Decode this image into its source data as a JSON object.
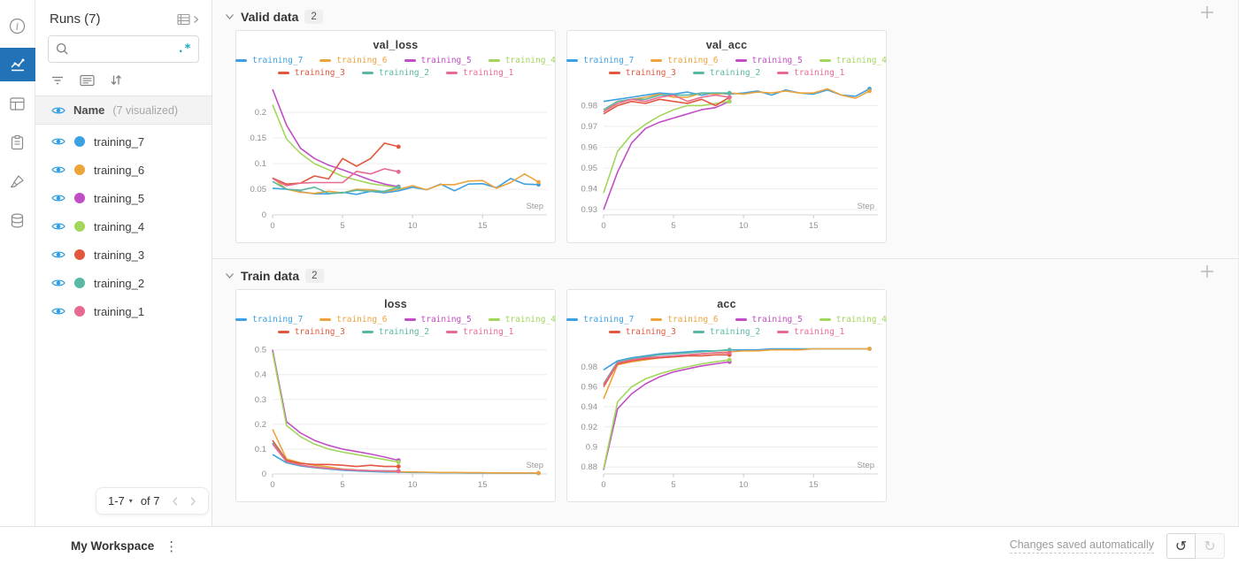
{
  "rail": {
    "items": [
      {
        "icon": "info-icon",
        "active": false
      },
      {
        "icon": "line-chart-icon",
        "active": true
      },
      {
        "icon": "table-panel-icon",
        "active": false
      },
      {
        "icon": "clipboard-icon",
        "active": false
      },
      {
        "icon": "brush-icon",
        "active": false
      },
      {
        "icon": "database-icon",
        "active": false
      }
    ]
  },
  "runs_panel": {
    "title": "Runs (7)",
    "search": {
      "value": "",
      "placeholder": "",
      "regex_icon": ".*"
    },
    "header": {
      "name_label": "Name",
      "visualized_label": "(7 visualized)"
    },
    "runs": [
      {
        "name": "training_7",
        "color": "#3da0e2"
      },
      {
        "name": "training_6",
        "color": "#eda43c"
      },
      {
        "name": "training_5",
        "color": "#c14ec4"
      },
      {
        "name": "training_4",
        "color": "#a3d65c"
      },
      {
        "name": "training_3",
        "color": "#e2573d"
      },
      {
        "name": "training_2",
        "color": "#58b8a4"
      },
      {
        "name": "training_1",
        "color": "#e96a90"
      }
    ],
    "pagination": {
      "range_label": "1-7",
      "of_label": "of 7"
    }
  },
  "sections": [
    {
      "title": "Valid data",
      "count": "2"
    },
    {
      "title": "Train data",
      "count": "2"
    }
  ],
  "chart_data": [
    {
      "type": "line",
      "title": "val_loss",
      "xlabel": "Step",
      "xlim": [
        0,
        19.6
      ],
      "xticks": [
        0,
        5,
        10,
        15
      ],
      "ylim": [
        0,
        0.252
      ],
      "yticks": [
        0,
        0.05,
        0.1,
        0.15,
        0.2
      ],
      "ytick_labels": [
        "0",
        "0.05",
        "0.1",
        "0.15",
        "0.2"
      ],
      "grid": "horizontal",
      "legend_position": "top",
      "series": [
        {
          "name": "training_7",
          "color": "#3da0e2",
          "values": [
            0.052,
            0.05,
            0.045,
            0.041,
            0.041,
            0.044,
            0.04,
            0.046,
            0.043,
            0.047,
            0.054,
            0.049,
            0.06,
            0.047,
            0.06,
            0.061,
            0.053,
            0.071,
            0.06,
            0.059
          ]
        },
        {
          "name": "training_6",
          "color": "#eda43c",
          "values": [
            0.072,
            0.05,
            0.044,
            0.042,
            0.046,
            0.043,
            0.05,
            0.049,
            0.045,
            0.05,
            0.057,
            0.049,
            0.059,
            0.059,
            0.066,
            0.067,
            0.052,
            0.063,
            0.08,
            0.064
          ]
        },
        {
          "name": "training_5",
          "color": "#c14ec4",
          "values": [
            0.245,
            0.175,
            0.13,
            0.11,
            0.097,
            0.088,
            0.078,
            0.068,
            0.06,
            0.055
          ]
        },
        {
          "name": "training_4",
          "color": "#a3d65c",
          "values": [
            0.215,
            0.148,
            0.12,
            0.1,
            0.088,
            0.075,
            0.068,
            0.061,
            0.057,
            0.053
          ]
        },
        {
          "name": "training_3",
          "color": "#e2573d",
          "values": [
            0.072,
            0.06,
            0.062,
            0.076,
            0.07,
            0.11,
            0.095,
            0.11,
            0.14,
            0.133
          ]
        },
        {
          "name": "training_2",
          "color": "#58b8a4",
          "values": [
            0.065,
            0.05,
            0.048,
            0.054,
            0.042,
            0.043,
            0.048,
            0.046,
            0.046,
            0.054
          ]
        },
        {
          "name": "training_1",
          "color": "#e96a90",
          "values": [
            0.071,
            0.057,
            0.062,
            0.063,
            0.063,
            0.063,
            0.085,
            0.08,
            0.09,
            0.084
          ]
        }
      ]
    },
    {
      "type": "line",
      "title": "val_acc",
      "xlabel": "Step",
      "xlim": [
        0,
        19.6
      ],
      "xticks": [
        0,
        5,
        10,
        15
      ],
      "ylim": [
        0.9275,
        0.9895
      ],
      "yticks": [
        0.93,
        0.94,
        0.95,
        0.96,
        0.97,
        0.98
      ],
      "ytick_labels": [
        "0.93",
        "0.94",
        "0.95",
        "0.96",
        "0.97",
        "0.98"
      ],
      "grid": "horizontal",
      "legend_position": "top",
      "series": [
        {
          "name": "training_7",
          "color": "#3da0e2",
          "values": [
            0.982,
            0.983,
            0.984,
            0.985,
            0.986,
            0.9855,
            0.9865,
            0.985,
            0.986,
            0.9855,
            0.986,
            0.987,
            0.985,
            0.9875,
            0.986,
            0.9855,
            0.9875,
            0.985,
            0.9845,
            0.988
          ]
        },
        {
          "name": "training_6",
          "color": "#eda43c",
          "values": [
            0.977,
            0.982,
            0.983,
            0.984,
            0.9855,
            0.984,
            0.984,
            0.986,
            0.9855,
            0.986,
            0.9855,
            0.9865,
            0.986,
            0.987,
            0.986,
            0.986,
            0.988,
            0.985,
            0.9835,
            0.987
          ]
        },
        {
          "name": "training_5",
          "color": "#c14ec4",
          "values": [
            0.93,
            0.948,
            0.962,
            0.969,
            0.972,
            0.974,
            0.976,
            0.978,
            0.979,
            0.982
          ]
        },
        {
          "name": "training_4",
          "color": "#a3d65c",
          "values": [
            0.938,
            0.958,
            0.966,
            0.971,
            0.975,
            0.978,
            0.98,
            0.98,
            0.981,
            0.982
          ]
        },
        {
          "name": "training_3",
          "color": "#e2573d",
          "values": [
            0.976,
            0.98,
            0.982,
            0.981,
            0.983,
            0.982,
            0.981,
            0.983,
            0.98,
            0.984
          ]
        },
        {
          "name": "training_2",
          "color": "#58b8a4",
          "values": [
            0.978,
            0.982,
            0.983,
            0.983,
            0.985,
            0.985,
            0.985,
            0.986,
            0.986,
            0.986
          ]
        },
        {
          "name": "training_1",
          "color": "#e96a90",
          "values": [
            0.977,
            0.981,
            0.983,
            0.982,
            0.984,
            0.985,
            0.982,
            0.984,
            0.985,
            0.984
          ]
        }
      ]
    },
    {
      "type": "line",
      "title": "loss",
      "xlabel": "Step",
      "xlim": [
        0,
        19.6
      ],
      "xticks": [
        0,
        5,
        10,
        15
      ],
      "ylim": [
        0,
        0.52
      ],
      "yticks": [
        0,
        0.1,
        0.2,
        0.3,
        0.4,
        0.5
      ],
      "ytick_labels": [
        "0",
        "0.1",
        "0.2",
        "0.3",
        "0.4",
        "0.5"
      ],
      "grid": "horizontal",
      "legend_position": "top",
      "series": [
        {
          "name": "training_7",
          "color": "#3da0e2",
          "values": [
            0.078,
            0.045,
            0.032,
            0.025,
            0.02,
            0.015,
            0.012,
            0.01,
            0.008,
            0.007,
            0.006,
            0.006,
            0.005,
            0.005,
            0.004,
            0.004,
            0.004,
            0.003,
            0.003,
            0.003
          ]
        },
        {
          "name": "training_6",
          "color": "#eda43c",
          "values": [
            0.18,
            0.06,
            0.045,
            0.035,
            0.028,
            0.02,
            0.016,
            0.013,
            0.011,
            0.009,
            0.008,
            0.007,
            0.006,
            0.006,
            0.005,
            0.005,
            0.004,
            0.004,
            0.004,
            0.004
          ]
        },
        {
          "name": "training_5",
          "color": "#c14ec4",
          "values": [
            0.5,
            0.21,
            0.165,
            0.135,
            0.115,
            0.1,
            0.09,
            0.08,
            0.068,
            0.055
          ]
        },
        {
          "name": "training_4",
          "color": "#a3d65c",
          "values": [
            0.49,
            0.195,
            0.15,
            0.12,
            0.1,
            0.088,
            0.078,
            0.068,
            0.058,
            0.048
          ]
        },
        {
          "name": "training_3",
          "color": "#e2573d",
          "values": [
            0.135,
            0.055,
            0.042,
            0.038,
            0.038,
            0.035,
            0.03,
            0.035,
            0.03,
            0.03
          ]
        },
        {
          "name": "training_2",
          "color": "#58b8a4",
          "values": [
            0.125,
            0.048,
            0.035,
            0.028,
            0.022,
            0.018,
            0.015,
            0.013,
            0.012,
            0.012
          ]
        },
        {
          "name": "training_1",
          "color": "#e96a90",
          "values": [
            0.12,
            0.05,
            0.036,
            0.027,
            0.022,
            0.018,
            0.015,
            0.013,
            0.012,
            0.011
          ]
        }
      ]
    },
    {
      "type": "line",
      "title": "acc",
      "xlabel": "Step",
      "xlim": [
        0,
        19.6
      ],
      "xticks": [
        0,
        5,
        10,
        15
      ],
      "ylim": [
        0.873,
        1.002
      ],
      "yticks": [
        0.88,
        0.9,
        0.92,
        0.94,
        0.96,
        0.98
      ],
      "ytick_labels": [
        "0.88",
        "0.9",
        "0.92",
        "0.94",
        "0.96",
        "0.98"
      ],
      "grid": "horizontal",
      "legend_position": "top",
      "series": [
        {
          "name": "training_7",
          "color": "#3da0e2",
          "values": [
            0.977,
            0.986,
            0.989,
            0.991,
            0.993,
            0.994,
            0.995,
            0.996,
            0.996,
            0.997,
            0.997,
            0.997,
            0.998,
            0.998,
            0.998,
            0.998,
            0.998,
            0.998,
            0.998,
            0.998
          ]
        },
        {
          "name": "training_6",
          "color": "#eda43c",
          "values": [
            0.948,
            0.982,
            0.985,
            0.987,
            0.989,
            0.99,
            0.992,
            0.993,
            0.994,
            0.995,
            0.996,
            0.996,
            0.997,
            0.997,
            0.997,
            0.998,
            0.998,
            0.998,
            0.998,
            0.998
          ]
        },
        {
          "name": "training_5",
          "color": "#c14ec4",
          "values": [
            0.877,
            0.938,
            0.953,
            0.963,
            0.97,
            0.975,
            0.978,
            0.981,
            0.983,
            0.985
          ]
        },
        {
          "name": "training_4",
          "color": "#a3d65c",
          "values": [
            0.878,
            0.945,
            0.96,
            0.968,
            0.973,
            0.977,
            0.98,
            0.983,
            0.985,
            0.987
          ]
        },
        {
          "name": "training_3",
          "color": "#e2573d",
          "values": [
            0.96,
            0.983,
            0.986,
            0.988,
            0.989,
            0.99,
            0.991,
            0.991,
            0.992,
            0.992
          ]
        },
        {
          "name": "training_2",
          "color": "#58b8a4",
          "values": [
            0.963,
            0.985,
            0.988,
            0.99,
            0.992,
            0.993,
            0.994,
            0.995,
            0.996,
            0.997
          ]
        },
        {
          "name": "training_1",
          "color": "#e96a90",
          "values": [
            0.962,
            0.984,
            0.987,
            0.989,
            0.99,
            0.991,
            0.992,
            0.993,
            0.994,
            0.994
          ]
        }
      ]
    }
  ],
  "footer": {
    "workspace_label": "My Workspace",
    "status_text": "Changes saved automatically"
  },
  "colors": {
    "accent_blue": "#2272b8",
    "eye_blue": "#2f9ee3",
    "regex_teal": "#17a8c0",
    "grid_line": "#ececec",
    "axis_line": "#d7d7d7",
    "tick_text": "#8f8f8f"
  }
}
